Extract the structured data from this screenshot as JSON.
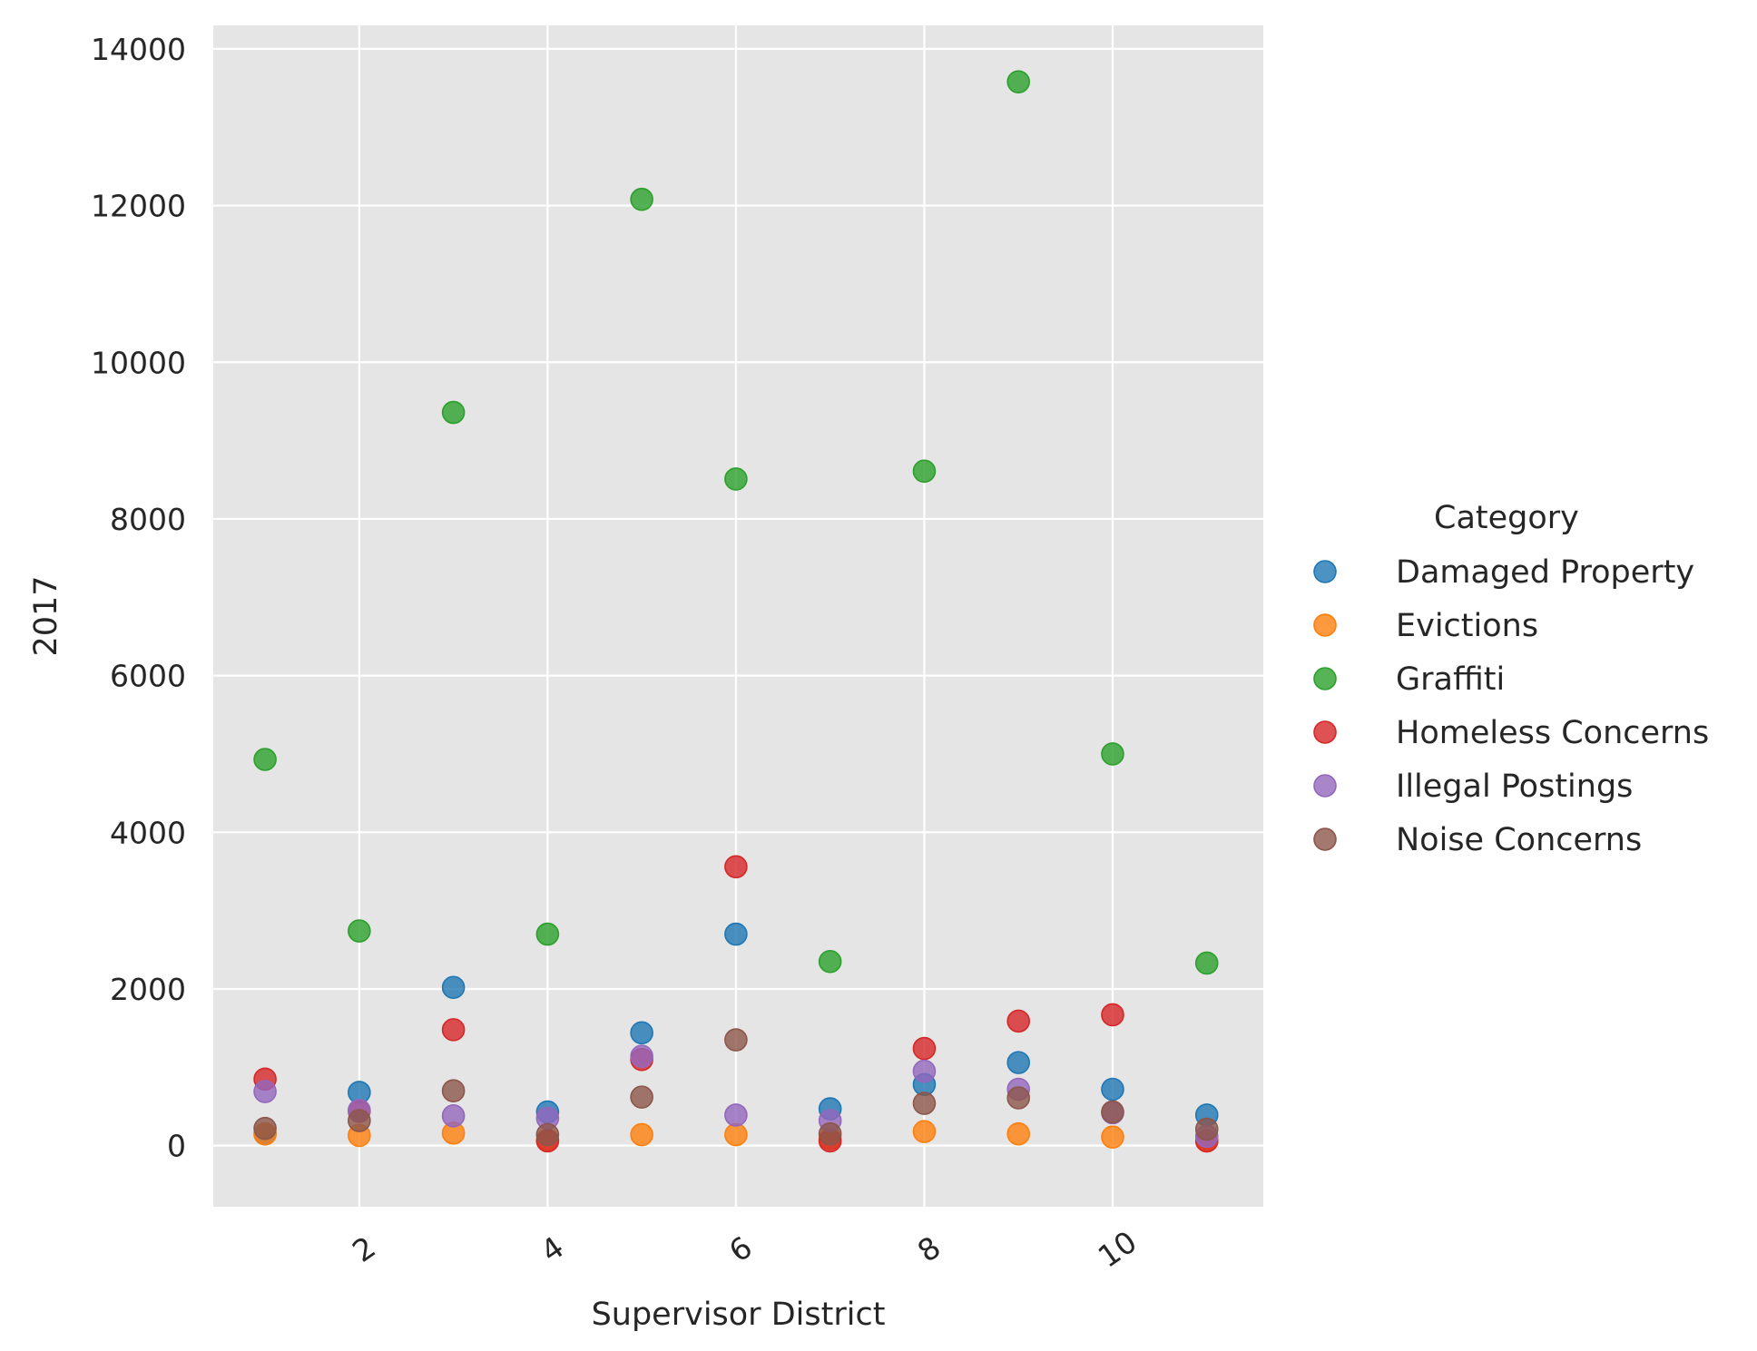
{
  "chart_data": {
    "type": "scatter",
    "xlabel": "Supervisor District",
    "ylabel": "2017",
    "xlim": [
      0.45,
      11.6
    ],
    "ylim": [
      -780,
      14300
    ],
    "xticks": [
      2,
      4,
      6,
      8,
      10
    ],
    "yticks": [
      0,
      2000,
      4000,
      6000,
      8000,
      10000,
      12000,
      14000
    ],
    "xtick_rotation": -35,
    "grid": true,
    "background": "#e5e5e5",
    "legend": {
      "title": "Category",
      "placement": "right"
    },
    "x": [
      1,
      2,
      3,
      4,
      5,
      6,
      7,
      8,
      9,
      10,
      11
    ],
    "series": [
      {
        "name": "Damaged Property",
        "color": "#1f77b4",
        "values": [
          150,
          680,
          2020,
          430,
          1440,
          2700,
          470,
          780,
          1060,
          720,
          390
        ]
      },
      {
        "name": "Evictions",
        "color": "#ff7f0e",
        "values": [
          150,
          130,
          160,
          70,
          140,
          140,
          90,
          180,
          150,
          110,
          60
        ]
      },
      {
        "name": "Graffiti",
        "color": "#2ca02c",
        "values": [
          4930,
          2740,
          9360,
          2700,
          12080,
          8510,
          2350,
          8610,
          13580,
          5000,
          2330
        ]
      },
      {
        "name": "Homeless Concerns",
        "color": "#d62728",
        "values": [
          850,
          440,
          1480,
          60,
          1100,
          3560,
          60,
          1240,
          1590,
          1670,
          60
        ]
      },
      {
        "name": "Illegal Postings",
        "color": "#9467bd",
        "values": [
          690,
          450,
          380,
          350,
          1140,
          390,
          320,
          950,
          720,
          420,
          120
        ]
      },
      {
        "name": "Noise Concerns",
        "color": "#8c564b",
        "values": [
          220,
          320,
          700,
          140,
          620,
          1350,
          150,
          540,
          610,
          430,
          210
        ]
      }
    ]
  }
}
